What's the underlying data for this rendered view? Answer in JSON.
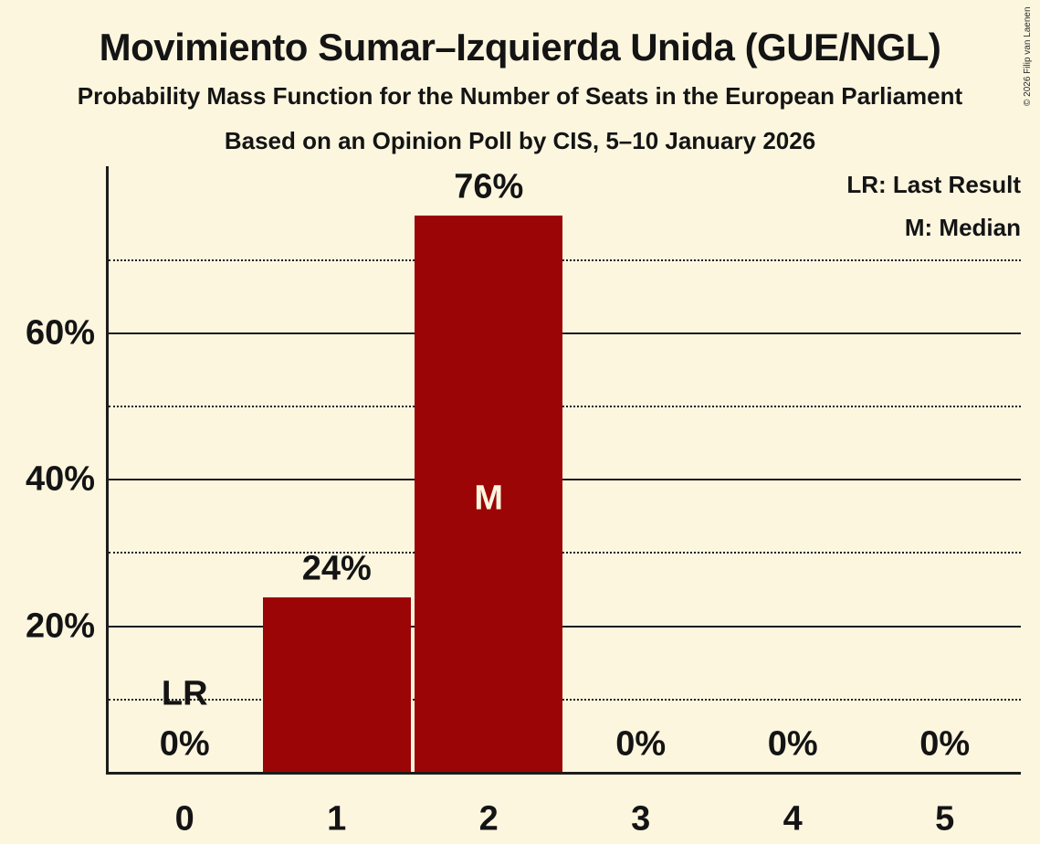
{
  "header": {
    "title": "Movimiento Sumar–Izquierda Unida (GUE/NGL)",
    "subtitle": "Probability Mass Function for the Number of Seats in the European Parliament",
    "poll_info": "Based on an Opinion Poll by CIS, 5–10 January 2026"
  },
  "legend": {
    "last_result": "LR: Last Result",
    "median": "M: Median",
    "position": "top-right"
  },
  "copyright": "© 2026 Filip van Laenen",
  "colors": {
    "background": "#FCF6DF",
    "bar": "#9C0505",
    "text": "#141414",
    "grid": "#1C1C1C",
    "median_label": "#FCF6DF"
  },
  "chart_data": {
    "type": "bar",
    "title": "Probability Mass Function for the Number of Seats in the European Parliament",
    "categories": [
      "0",
      "1",
      "2",
      "3",
      "4",
      "5"
    ],
    "values": [
      0,
      24,
      76,
      0,
      0,
      0
    ],
    "bar_labels": [
      "0%",
      "24%",
      "76%",
      "0%",
      "0%",
      "0%"
    ],
    "xlabel": "",
    "ylabel": "",
    "ylim": [
      0,
      83
    ],
    "grid": true,
    "y_ticks": [
      {
        "value": 20,
        "label": "20%"
      },
      {
        "value": 40,
        "label": "40%"
      },
      {
        "value": 60,
        "label": "60%"
      }
    ],
    "gridlines": [
      {
        "value": 10,
        "style": "dotted"
      },
      {
        "value": 20,
        "style": "solid"
      },
      {
        "value": 30,
        "style": "dotted"
      },
      {
        "value": 40,
        "style": "solid"
      },
      {
        "value": 50,
        "style": "dotted"
      },
      {
        "value": 60,
        "style": "solid"
      },
      {
        "value": 70,
        "style": "dotted"
      }
    ],
    "annotations": {
      "last_result": {
        "category": "0",
        "label": "LR"
      },
      "median": {
        "category": "2",
        "label": "M"
      }
    }
  }
}
